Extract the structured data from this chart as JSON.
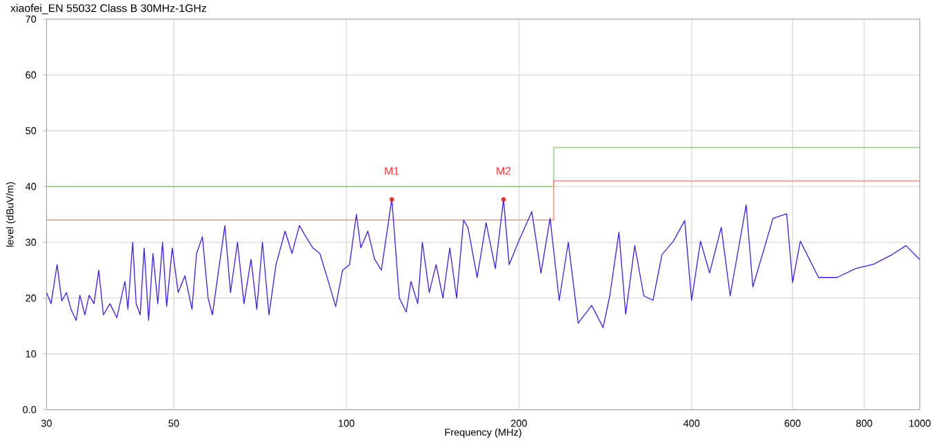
{
  "chart_data": {
    "type": "line",
    "title": "xiaofei_EN 55032 Class B 30MHz-1GHz",
    "xlabel": "Frequency (MHz)",
    "ylabel": "level (dBuV/m)",
    "log": "x",
    "grid": true,
    "xlim": [
      30,
      1000
    ],
    "ylim": [
      0,
      70
    ],
    "xticks": [
      30,
      50,
      100,
      200,
      400,
      600,
      800,
      1000
    ],
    "yticks": [
      {
        "value": 0,
        "label": "0.0"
      },
      10,
      20,
      30,
      40,
      50,
      60,
      70
    ],
    "series": [
      {
        "color": "#7fcf6a",
        "x": [
          30,
          230,
          230,
          1000
        ],
        "values": [
          40,
          40,
          47,
          47
        ]
      },
      {
        "color": "#f0826a",
        "x": [
          30,
          230,
          230,
          1000
        ],
        "values": [
          34,
          34,
          41,
          41
        ]
      },
      {
        "color": "#3b1ef0",
        "x": [
          30,
          30.55,
          31.3,
          31.9,
          32.5,
          33.1,
          33.8,
          34.3,
          35.0,
          35.6,
          36.3,
          37.0,
          37.7,
          38.7,
          39.8,
          41.1,
          41.6,
          42.4,
          43.0,
          43.7,
          44.4,
          45.2,
          46.0,
          46.9,
          47.8,
          48.6,
          49.7,
          50.9,
          52.3,
          53.8,
          54.8,
          56.1,
          57.4,
          58.4,
          59.5,
          61.4,
          62.8,
          64.6,
          66.3,
          68.2,
          69.8,
          71.4,
          73.3,
          75.4,
          78.2,
          80.4,
          82.8,
          85.0,
          87.4,
          89.9,
          92.4,
          95.8,
          98.5,
          101.3,
          104.1,
          106.0,
          109.0,
          112.0,
          115.1,
          120,
          120.4,
          123.7,
          127.2,
          129.6,
          133.2,
          135.7,
          139.5,
          143.4,
          147.4,
          151.5,
          155.7,
          160.1,
          163.0,
          169.1,
          175.3,
          181.9,
          188,
          192.3,
          199.4,
          210.6,
          218.5,
          226.6,
          235.1,
          243.8,
          253.7,
          267.8,
          280.4,
          288,
          298.8,
          307,
          318.4,
          330.2,
          342.6,
          355.2,
          371.8,
          389.2,
          400,
          414.6,
          430,
          450.6,
          467,
          498,
          511.6,
          554.8,
          586,
          600,
          619,
          666,
          717.6,
          773,
          832,
          895,
          946,
          1000
        ],
        "values": [
          21,
          19,
          26,
          19.5,
          21,
          18,
          16,
          20.5,
          17,
          20.5,
          19,
          25,
          17,
          19,
          16.5,
          23,
          18,
          30,
          19,
          17,
          29,
          16,
          28,
          19,
          30,
          18.5,
          29,
          21,
          24,
          18,
          28,
          31,
          20,
          17,
          23,
          33,
          21,
          30,
          19,
          27,
          18,
          30,
          17,
          26,
          32,
          28,
          33,
          31,
          29,
          28,
          24,
          18.5,
          25,
          26,
          35,
          29,
          32,
          27,
          25,
          37.7,
          36,
          20,
          17.5,
          23,
          19,
          30,
          21,
          26,
          20,
          29,
          20,
          34,
          32.6,
          23.7,
          33.5,
          25.3,
          37.7,
          26,
          30,
          35.5,
          24.5,
          34.3,
          19.6,
          30,
          15.5,
          18.7,
          14.7,
          20.4,
          31.8,
          17.1,
          29.4,
          20.4,
          19.6,
          27.8,
          30.2,
          33.9,
          19.6,
          30.2,
          24.5,
          32.7,
          20.4,
          36.7,
          22.0,
          34.3,
          35.1,
          22.8,
          30.2,
          23.7,
          23.7,
          25.3,
          26.1,
          27.8,
          29.4,
          26.9
        ]
      },
      {
        "type": "scatter",
        "marker": "circle",
        "color": "#e83030",
        "x": [
          120,
          188
        ],
        "values": [
          37.7,
          37.7
        ]
      }
    ],
    "annotations": [
      {
        "text": "M1",
        "x": 120,
        "y": 37.7
      },
      {
        "text": "M2",
        "x": 188,
        "y": 37.7
      }
    ]
  }
}
